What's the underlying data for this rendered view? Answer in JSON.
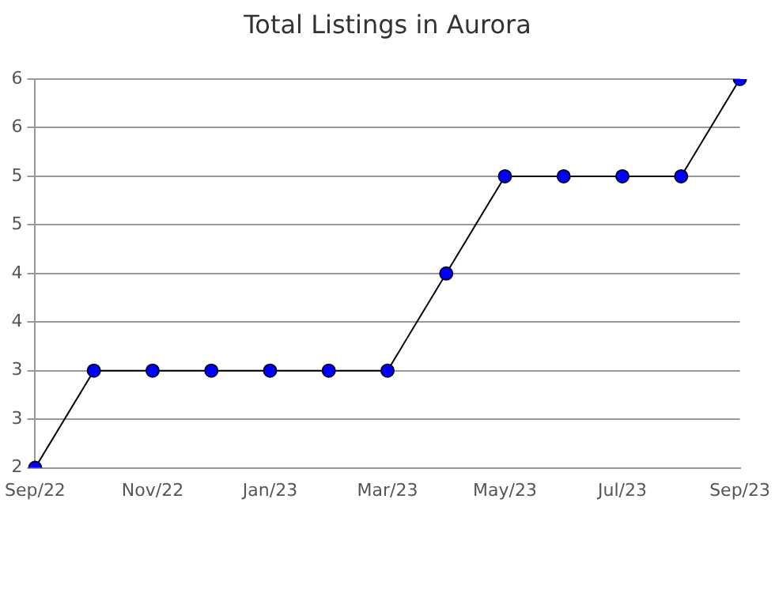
{
  "chart_data": {
    "type": "line",
    "title": "Total Listings in Aurora",
    "categories": [
      "Sep/22",
      null,
      "Nov/22",
      null,
      "Jan/23",
      null,
      "Mar/23",
      null,
      "May/23",
      null,
      "Jul/23",
      null,
      "Sep/23"
    ],
    "series": [
      {
        "color": "#0000ff",
        "values": [
          2,
          3,
          3,
          3,
          3,
          3,
          3,
          4,
          5,
          5,
          5,
          5,
          6
        ]
      }
    ],
    "ylim": [
      2,
      6
    ],
    "yticks": [
      2,
      {
        "value": 2.5,
        "label": "3"
      },
      3,
      {
        "value": 3.5,
        "label": "4"
      },
      4,
      {
        "value": 4.5,
        "label": "5"
      },
      5,
      {
        "value": 5.5,
        "label": "6"
      },
      6
    ],
    "grid": "y",
    "legend": false,
    "marker": "circle",
    "line_style": "solid"
  }
}
